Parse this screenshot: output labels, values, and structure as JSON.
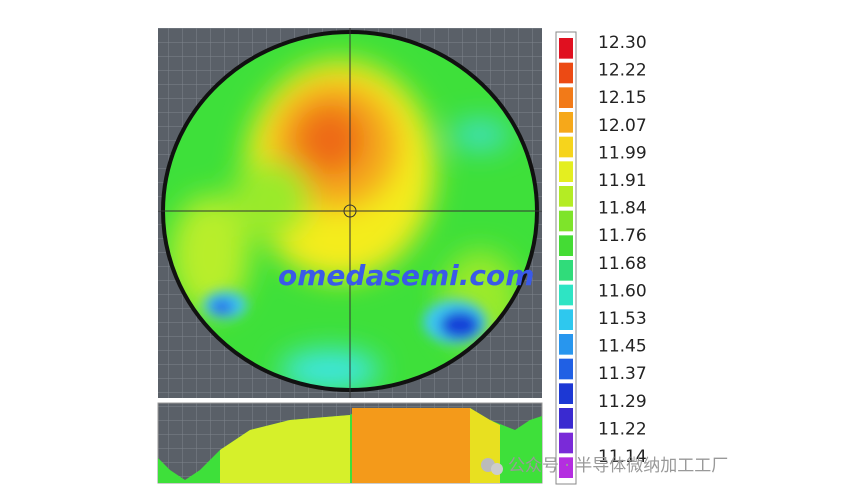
{
  "colorbar": {
    "labels": [
      "12.30",
      "12.22",
      "12.15",
      "12.07",
      "11.99",
      "11.91",
      "11.84",
      "11.76",
      "11.68",
      "11.60",
      "11.53",
      "11.45",
      "11.37",
      "11.29",
      "11.22",
      "11.14"
    ]
  },
  "watermark": "omedasemi.com",
  "footer": "公众号 · 半导体微纳加工工厂"
}
